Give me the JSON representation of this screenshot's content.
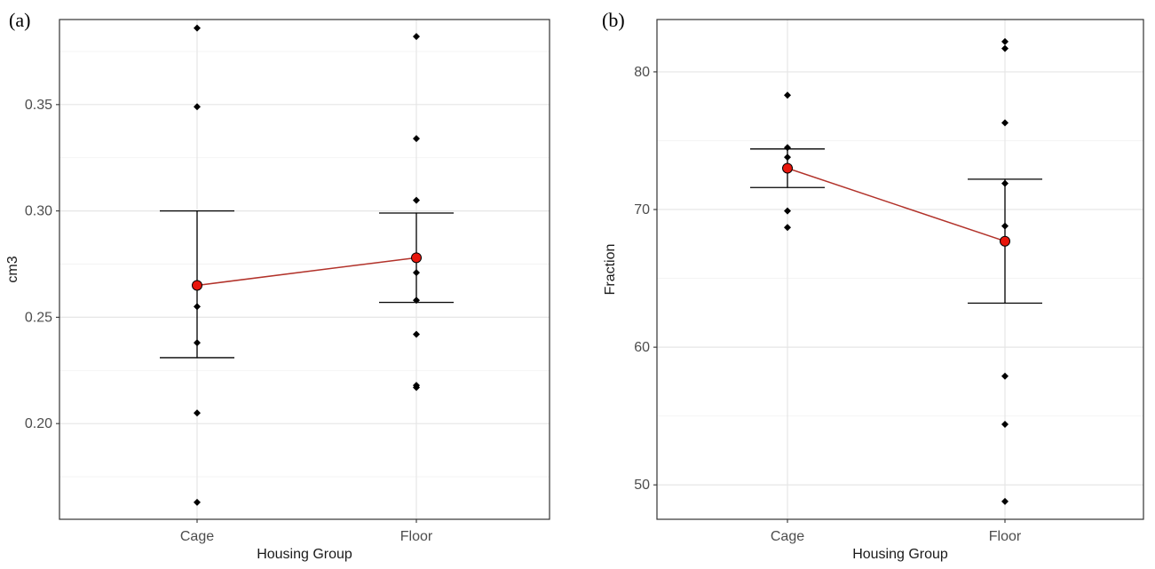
{
  "colors": {
    "mean_point": "#e8160c",
    "mean_line": "#b2322a",
    "points": "#000000",
    "grid": "#e6e6e6"
  },
  "chart_data": [
    {
      "type": "scatter",
      "panel_label": "(a)",
      "title": "",
      "xlabel": "Housing Group",
      "ylabel": "cm3",
      "categories": [
        "Cage",
        "Floor"
      ],
      "ylim": [
        0.155,
        0.39
      ],
      "yticks": [
        0.2,
        0.25,
        0.3,
        0.35
      ],
      "ytick_labels": [
        "0.20",
        "0.25",
        "0.30",
        "0.35"
      ],
      "grid": true,
      "points": [
        {
          "x": "Cage",
          "y": 0.386
        },
        {
          "x": "Cage",
          "y": 0.349
        },
        {
          "x": "Cage",
          "y": 0.255
        },
        {
          "x": "Cage",
          "y": 0.238
        },
        {
          "x": "Cage",
          "y": 0.205
        },
        {
          "x": "Cage",
          "y": 0.163
        },
        {
          "x": "Floor",
          "y": 0.382
        },
        {
          "x": "Floor",
          "y": 0.334
        },
        {
          "x": "Floor",
          "y": 0.305
        },
        {
          "x": "Floor",
          "y": 0.271
        },
        {
          "x": "Floor",
          "y": 0.258
        },
        {
          "x": "Floor",
          "y": 0.242
        },
        {
          "x": "Floor",
          "y": 0.218
        },
        {
          "x": "Floor",
          "y": 0.217
        }
      ],
      "means": [
        {
          "x": "Cage",
          "mean": 0.265,
          "lower": 0.231,
          "upper": 0.3
        },
        {
          "x": "Floor",
          "mean": 0.278,
          "lower": 0.257,
          "upper": 0.299
        }
      ]
    },
    {
      "type": "scatter",
      "panel_label": "(b)",
      "title": "",
      "xlabel": "Housing Group",
      "ylabel": "Fraction",
      "categories": [
        "Cage",
        "Floor"
      ],
      "ylim": [
        47.5,
        83.8
      ],
      "yticks": [
        50,
        60,
        70,
        80
      ],
      "ytick_labels": [
        "50",
        "60",
        "70",
        "80"
      ],
      "grid": true,
      "points": [
        {
          "x": "Cage",
          "y": 78.3
        },
        {
          "x": "Cage",
          "y": 74.5
        },
        {
          "x": "Cage",
          "y": 73.8
        },
        {
          "x": "Cage",
          "y": 73.1
        },
        {
          "x": "Cage",
          "y": 69.9
        },
        {
          "x": "Cage",
          "y": 68.7
        },
        {
          "x": "Floor",
          "y": 82.2
        },
        {
          "x": "Floor",
          "y": 81.7
        },
        {
          "x": "Floor",
          "y": 76.3
        },
        {
          "x": "Floor",
          "y": 71.9
        },
        {
          "x": "Floor",
          "y": 68.8
        },
        {
          "x": "Floor",
          "y": 57.9
        },
        {
          "x": "Floor",
          "y": 54.4
        },
        {
          "x": "Floor",
          "y": 48.8
        }
      ],
      "means": [
        {
          "x": "Cage",
          "mean": 73.0,
          "lower": 71.6,
          "upper": 74.4
        },
        {
          "x": "Floor",
          "mean": 67.7,
          "lower": 63.2,
          "upper": 72.2
        }
      ]
    }
  ]
}
